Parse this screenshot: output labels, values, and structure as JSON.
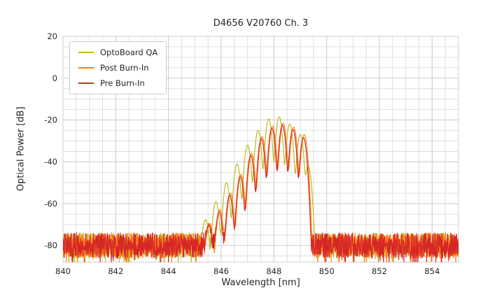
{
  "chart_data": {
    "type": "line",
    "title": "D4656 V20760 Ch. 3",
    "xlabel": "Wavelength [nm]",
    "ylabel": "Optical Power [dB]",
    "xlim": [
      840,
      855
    ],
    "ylim": [
      -88,
      20
    ],
    "xticks": [
      840,
      842,
      844,
      846,
      848,
      850,
      852,
      854
    ],
    "yticks": [
      20,
      0,
      -20,
      -40,
      -60,
      -80
    ],
    "x_minor_step": 0.5,
    "y_minor_step": 5,
    "grid": true,
    "legend_position": "upper left",
    "noise_floor_db": -80,
    "noise_halfband_db": 6,
    "noise_spike_prob": 0.06,
    "noise_spike_db": 10,
    "mode_sigma_nm": 0.06,
    "sample_step_nm": 0.01,
    "series": [
      {
        "name": "OptoBoard QA",
        "color": "#bcbd22",
        "seed": 11,
        "modes": [
          [
            845.4,
            -68
          ],
          [
            845.8,
            -59
          ],
          [
            846.2,
            -50
          ],
          [
            846.6,
            -41
          ],
          [
            847.0,
            -32
          ],
          [
            847.4,
            -25
          ],
          [
            847.8,
            -19.5
          ],
          [
            848.2,
            -18.5
          ],
          [
            848.6,
            -22
          ],
          [
            849.0,
            -27
          ],
          [
            849.3,
            -42
          ]
        ]
      },
      {
        "name": "Post Burn-In",
        "color": "#ff7f0e",
        "seed": 22,
        "modes": [
          [
            845.55,
            -70
          ],
          [
            845.95,
            -63
          ],
          [
            846.35,
            -55
          ],
          [
            846.75,
            -46
          ],
          [
            847.15,
            -36
          ],
          [
            847.55,
            -28
          ],
          [
            847.95,
            -23
          ],
          [
            848.35,
            -21.5
          ],
          [
            848.75,
            -23.5
          ],
          [
            849.15,
            -27
          ]
        ]
      },
      {
        "name": "Pre Burn-In",
        "color": "#d62728",
        "seed": 33,
        "modes": [
          [
            845.52,
            -71
          ],
          [
            845.92,
            -64
          ],
          [
            846.32,
            -56
          ],
          [
            846.72,
            -47
          ],
          [
            847.12,
            -37
          ],
          [
            847.52,
            -29
          ],
          [
            847.92,
            -24
          ],
          [
            848.32,
            -22.5
          ],
          [
            848.72,
            -24.5
          ],
          [
            849.12,
            -28.5
          ]
        ]
      }
    ]
  }
}
